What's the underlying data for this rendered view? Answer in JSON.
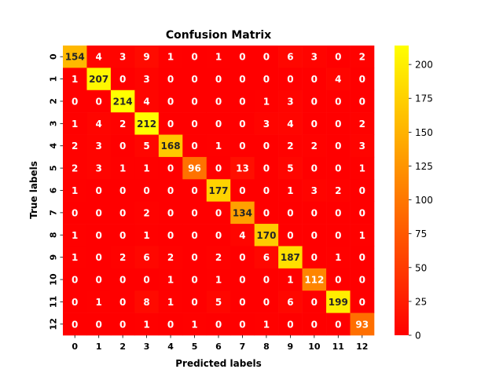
{
  "chart_data": {
    "type": "heatmap",
    "title": "Confusion Matrix",
    "xlabel": "Predicted labels",
    "ylabel": "True labels",
    "x_categories": [
      "0",
      "1",
      "2",
      "3",
      "4",
      "5",
      "6",
      "7",
      "8",
      "9",
      "10",
      "11",
      "12"
    ],
    "y_categories": [
      "0",
      "1",
      "2",
      "3",
      "4",
      "5",
      "6",
      "7",
      "8",
      "9",
      "10",
      "11",
      "12"
    ],
    "values": [
      [
        154,
        4,
        3,
        9,
        1,
        0,
        1,
        0,
        0,
        6,
        3,
        0,
        2
      ],
      [
        1,
        207,
        0,
        3,
        0,
        0,
        0,
        0,
        0,
        0,
        0,
        4,
        0
      ],
      [
        0,
        0,
        214,
        4,
        0,
        0,
        0,
        0,
        1,
        3,
        0,
        0,
        0
      ],
      [
        1,
        4,
        2,
        212,
        0,
        0,
        0,
        0,
        3,
        4,
        0,
        0,
        2
      ],
      [
        2,
        3,
        0,
        5,
        168,
        0,
        1,
        0,
        0,
        2,
        2,
        0,
        3
      ],
      [
        2,
        3,
        1,
        1,
        0,
        96,
        0,
        13,
        0,
        5,
        0,
        0,
        1
      ],
      [
        1,
        0,
        0,
        0,
        0,
        0,
        177,
        0,
        0,
        1,
        3,
        2,
        0
      ],
      [
        0,
        0,
        0,
        2,
        0,
        0,
        0,
        134,
        0,
        0,
        0,
        0,
        0
      ],
      [
        1,
        0,
        0,
        1,
        0,
        0,
        0,
        4,
        170,
        0,
        0,
        0,
        1
      ],
      [
        1,
        0,
        2,
        6,
        2,
        0,
        2,
        0,
        6,
        187,
        0,
        1,
        0
      ],
      [
        0,
        0,
        0,
        0,
        1,
        0,
        1,
        0,
        0,
        1,
        112,
        0,
        0
      ],
      [
        0,
        1,
        0,
        8,
        1,
        0,
        5,
        0,
        0,
        6,
        0,
        199,
        0
      ],
      [
        0,
        0,
        0,
        1,
        0,
        1,
        0,
        0,
        1,
        0,
        0,
        0,
        93
      ]
    ],
    "colormap": "autumn",
    "colorbar": {
      "range": [
        0,
        214
      ],
      "ticks": [
        0,
        25,
        50,
        75,
        100,
        125,
        150,
        175,
        200
      ]
    },
    "annotations": "cell counts",
    "grid": false
  }
}
